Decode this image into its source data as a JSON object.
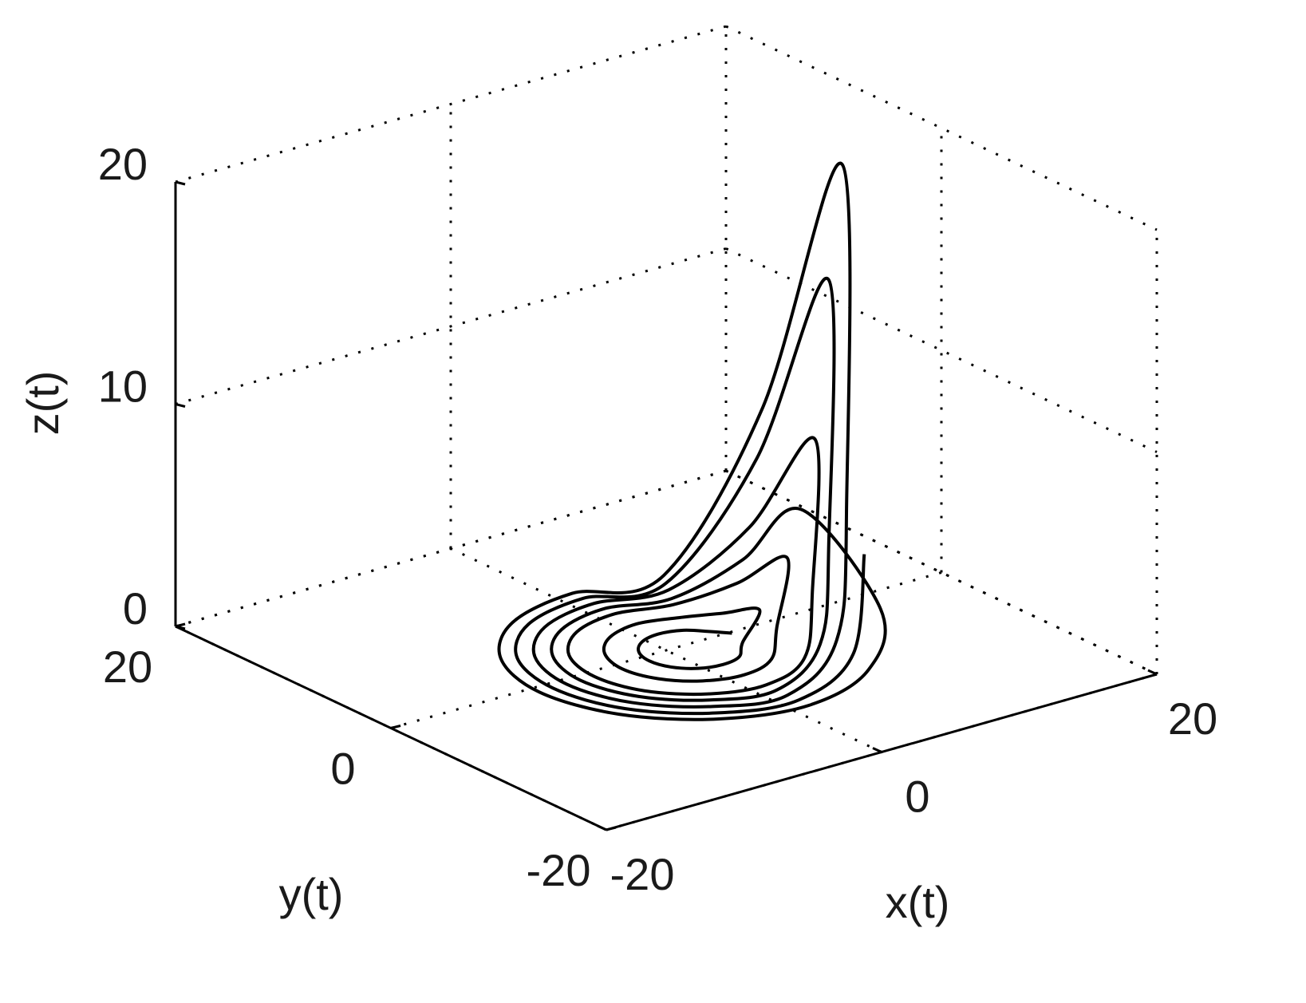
{
  "chart_data": {
    "type": "line3d",
    "color": "#000000",
    "grid": true,
    "xlabel": "x(t)",
    "ylabel": "y(t)",
    "zlabel": "z(t)",
    "xlim": [
      -20,
      20
    ],
    "ylim": [
      -20,
      20
    ],
    "zlim": [
      0,
      20
    ],
    "xticks": [
      -20,
      0,
      20
    ],
    "yticks": [
      -20,
      0,
      20
    ],
    "zticks": [
      0,
      10,
      20
    ],
    "x": [
      4,
      3.6,
      2.5,
      1,
      -0.5,
      -1.6,
      -2,
      -1.6,
      -0.5,
      1,
      2.5,
      3.6,
      6,
      5.3,
      3.5,
      1,
      -1.5,
      -3.3,
      -4,
      -3.3,
      -1.5,
      1,
      3.5,
      5.3,
      8,
      7.1,
      4.5,
      1,
      -2.5,
      -5.1,
      -6,
      -5.1,
      -2.5,
      1,
      4.5,
      7.1,
      10,
      8.8,
      5.5,
      1,
      -3.5,
      -6.8,
      -8,
      -6.8,
      -3.5,
      1,
      5.5,
      8.8,
      12,
      10.5,
      6.5,
      1,
      -4.5,
      -8.5,
      -10,
      -8.5,
      -4.5,
      1,
      6.5,
      10.5,
      9,
      7.9,
      5,
      1,
      -3,
      -5.9,
      -7,
      -5.9,
      -3,
      1,
      5,
      7.9,
      11,
      9.7,
      6,
      1,
      -4,
      -7.7,
      -9,
      -7.7,
      -4,
      1,
      6,
      9.7
    ],
    "y": [
      -1,
      0.5,
      1.6,
      2,
      1.6,
      0.5,
      -1,
      -2.5,
      -3.6,
      -4,
      -3.6,
      -2.5,
      -1,
      1.5,
      3.3,
      4,
      3.3,
      1.5,
      -1,
      -3.5,
      -5.3,
      -6,
      -5.3,
      -3.5,
      -1,
      2.5,
      5.1,
      6,
      5.1,
      2.5,
      -1,
      -4.5,
      -7.1,
      -8,
      -7.1,
      -4.5,
      -1,
      3.5,
      6.8,
      8,
      6.8,
      3.5,
      -1,
      -5.5,
      -8.8,
      -10,
      -8.8,
      -5.5,
      -1,
      4.5,
      8.5,
      10,
      8.5,
      4.5,
      -1,
      -6.5,
      -10.5,
      -12,
      -10.5,
      -6.5,
      -1,
      3,
      5.9,
      7,
      5.9,
      3,
      -1,
      -5,
      -7.9,
      -9,
      -7.9,
      -5,
      -1,
      4,
      7.7,
      9,
      7.7,
      4,
      -1,
      -6,
      -9.7,
      -11,
      -9.7,
      -6
    ],
    "z": [
      0.3,
      0.1,
      0.1,
      0.1,
      0.1,
      0.1,
      0.1,
      0.1,
      0.1,
      0.1,
      0.1,
      0.3,
      1,
      0.4,
      0.1,
      0.1,
      0.1,
      0.1,
      0.1,
      0.1,
      0.1,
      0.1,
      0.2,
      0.9,
      3,
      1.2,
      0.1,
      0.1,
      0.1,
      0.1,
      0.1,
      0.1,
      0.1,
      0.1,
      0.5,
      2.4,
      8,
      3.2,
      0.2,
      0.1,
      0.1,
      0.1,
      0.1,
      0.1,
      0.1,
      0.1,
      1.5,
      6,
      20,
      8,
      0.3,
      0.1,
      0.1,
      0.1,
      0.1,
      0.1,
      0.1,
      0.1,
      0.4,
      1.5,
      5,
      2,
      0.1,
      0.1,
      0.1,
      0.1,
      0.1,
      0.1,
      0.1,
      0.1,
      1.2,
      4.5,
      15,
      6,
      0.2,
      0.1,
      0.1,
      0.1,
      0.1,
      0.1,
      0.1,
      0.1,
      1,
      4
    ]
  }
}
